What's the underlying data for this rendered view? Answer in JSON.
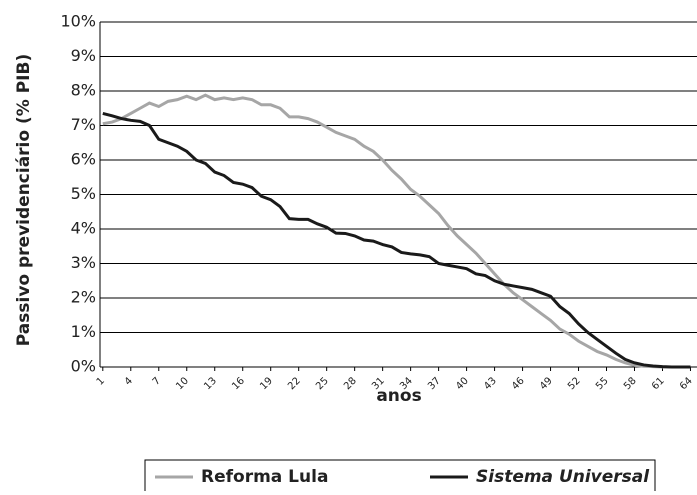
{
  "chart_data": {
    "type": "line",
    "ylabel": "Passivo previdenciário (% PIB)",
    "xlabel": "anos",
    "x": [
      1,
      2,
      3,
      4,
      5,
      6,
      7,
      8,
      9,
      10,
      11,
      12,
      13,
      14,
      15,
      16,
      17,
      18,
      19,
      20,
      21,
      22,
      23,
      24,
      25,
      26,
      27,
      28,
      29,
      30,
      31,
      32,
      33,
      34,
      35,
      36,
      37,
      38,
      39,
      40,
      41,
      42,
      43,
      44,
      45,
      46,
      47,
      48,
      49,
      50,
      51,
      52,
      53,
      54,
      55,
      56,
      57,
      58,
      59,
      60,
      61,
      62,
      63,
      64
    ],
    "xlim": [
      0.7,
      64.7
    ],
    "xticks": [
      1,
      4,
      7,
      10,
      13,
      16,
      19,
      22,
      25,
      28,
      31,
      34,
      37,
      40,
      43,
      46,
      49,
      52,
      55,
      58,
      61,
      64
    ],
    "ylim": [
      0,
      10
    ],
    "yticks": [
      {
        "value": 0,
        "label": "0%"
      },
      {
        "value": 1,
        "label": "1%"
      },
      {
        "value": 2,
        "label": "2%"
      },
      {
        "value": 3,
        "label": "3%"
      },
      {
        "value": 4,
        "label": "4%"
      },
      {
        "value": 5,
        "label": "5%"
      },
      {
        "value": 6,
        "label": "6%"
      },
      {
        "value": 7,
        "label": "7%"
      },
      {
        "value": 8,
        "label": "8%"
      },
      {
        "value": 9,
        "label": "9%"
      },
      {
        "value": 10,
        "label": "10%"
      }
    ],
    "grid": true,
    "legend": "bottom",
    "series": [
      {
        "name": "Reforma Lula",
        "color": "#a6a6a6",
        "values": [
          7.05,
          7.1,
          7.2,
          7.35,
          7.5,
          7.65,
          7.55,
          7.7,
          7.75,
          7.85,
          7.75,
          7.88,
          7.75,
          7.8,
          7.75,
          7.8,
          7.75,
          7.6,
          7.6,
          7.5,
          7.25,
          7.25,
          7.2,
          7.1,
          6.95,
          6.8,
          6.7,
          6.6,
          6.4,
          6.25,
          6.0,
          5.7,
          5.45,
          5.15,
          4.95,
          4.7,
          4.45,
          4.1,
          3.8,
          3.55,
          3.3,
          3.0,
          2.7,
          2.4,
          2.15,
          1.95,
          1.75,
          1.55,
          1.35,
          1.1,
          0.95,
          0.75,
          0.6,
          0.45,
          0.35,
          0.22,
          0.12,
          0.05,
          0.02,
          0.01,
          0,
          0,
          0,
          0
        ]
      },
      {
        "name": "Sistema Universal",
        "color": "#1a1a1a",
        "values": [
          7.35,
          7.28,
          7.2,
          7.15,
          7.12,
          7.0,
          6.6,
          6.5,
          6.4,
          6.25,
          6.0,
          5.9,
          5.65,
          5.55,
          5.35,
          5.3,
          5.2,
          4.95,
          4.85,
          4.65,
          4.3,
          4.28,
          4.28,
          4.15,
          4.05,
          3.88,
          3.87,
          3.8,
          3.68,
          3.65,
          3.55,
          3.48,
          3.32,
          3.28,
          3.25,
          3.2,
          3.0,
          2.95,
          2.9,
          2.85,
          2.7,
          2.65,
          2.5,
          2.4,
          2.35,
          2.3,
          2.25,
          2.15,
          2.05,
          1.75,
          1.55,
          1.25,
          1.0,
          0.8,
          0.6,
          0.4,
          0.22,
          0.12,
          0.06,
          0.03,
          0.01,
          0,
          0,
          0
        ]
      }
    ]
  }
}
